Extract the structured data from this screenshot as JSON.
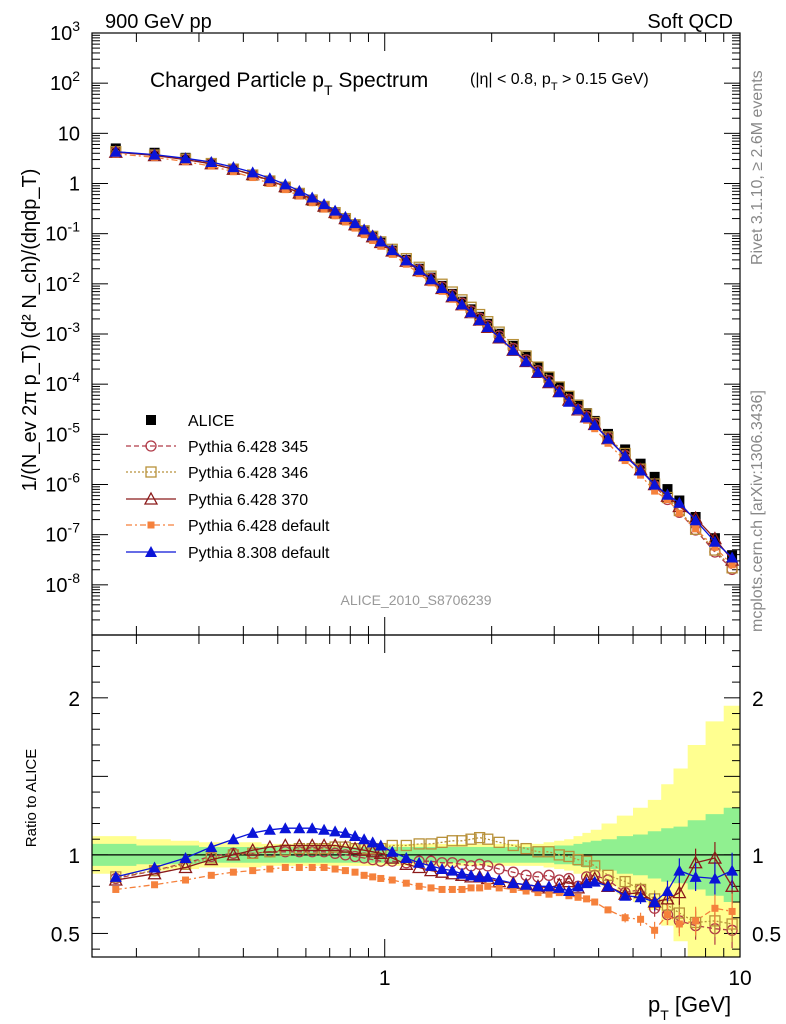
{
  "header": {
    "left": "900 GeV pp",
    "right": "Soft QCD"
  },
  "side": {
    "top": "Rivet 3.1.10, ≥ 2.6M events",
    "bottom": "mcplots.cern.ch [arXiv:1306.3436]"
  },
  "main": {
    "title_main": "Charged Particle p",
    "title_sub": "T",
    "title_tail": " Spectrum",
    "title_cut_a": "(|η| < 0.8, p",
    "title_cut_sub": "T",
    "title_cut_b": " > 0.15 GeV)",
    "ylabel": "1/(N_ev 2π p_T) (d² N_ch)/(dηdp_T)",
    "analysis": "ALICE_2010_S8706239"
  },
  "ratio": {
    "ylabel": "Ratio to ALICE"
  },
  "xaxis": {
    "label_a": "p",
    "label_sub": "T",
    "label_b": " [GeV]",
    "ticks": [
      "1",
      "10"
    ]
  },
  "colors": {
    "alice": "#000000",
    "p345": "#b03a48",
    "p346": "#b8913a",
    "p370": "#8b1a1a",
    "p6def": "#f5813c",
    "p8def": "#0a14d8",
    "band_inner": "#90f090",
    "band_outer": "#ffff90"
  },
  "chart_data": {
    "type": "line",
    "xscale": "log",
    "yscale_main": "log",
    "xlim": [
      0.15,
      10
    ],
    "ylim_main": [
      1e-09,
      1000
    ],
    "ylim_ratio": [
      0.35,
      2.4
    ],
    "legend_position": "bottom-left",
    "legend": [
      "ALICE",
      "Pythia 6.428 345",
      "Pythia 6.428 346",
      "Pythia 6.428 370",
      "Pythia 6.428 default",
      "Pythia 8.308 default"
    ],
    "main_yticks": [
      "10^3",
      "10^2",
      "10",
      "1",
      "10^-1",
      "10^-2",
      "10^-3",
      "10^-4",
      "10^-5",
      "10^-6",
      "10^-7",
      "10^-8"
    ],
    "ratio_yticks": [
      "0.5",
      "1",
      "2"
    ],
    "x": [
      0.175,
      0.225,
      0.275,
      0.325,
      0.375,
      0.425,
      0.475,
      0.525,
      0.575,
      0.625,
      0.675,
      0.725,
      0.775,
      0.825,
      0.875,
      0.925,
      0.975,
      1.05,
      1.15,
      1.25,
      1.35,
      1.45,
      1.55,
      1.65,
      1.75,
      1.85,
      1.95,
      2.1,
      2.3,
      2.5,
      2.7,
      2.9,
      3.1,
      3.3,
      3.5,
      3.7,
      3.9,
      4.25,
      4.75,
      5.25,
      5.75,
      6.25,
      6.75,
      7.5,
      8.5,
      9.5
    ],
    "alice": [
      5.0,
      4.1,
      3.25,
      2.55,
      1.93,
      1.46,
      1.1,
      0.82,
      0.61,
      0.45,
      0.335,
      0.25,
      0.19,
      0.145,
      0.11,
      0.085,
      0.066,
      0.046,
      0.03,
      0.02,
      0.0133,
      0.0091,
      0.0063,
      0.0044,
      0.0031,
      0.0022,
      0.0016,
      0.00101,
      0.00058,
      0.00035,
      0.000215,
      0.000136,
      8.8e-05,
      5.8e-05,
      3.9e-05,
      2.65e-05,
      1.85e-05,
      1.02e-05,
      5e-06,
      2.6e-06,
      1.42e-06,
      8.1e-07,
      4.8e-07,
      2.25e-07,
      8.5e-08,
      3.9e-08
    ],
    "ratio_series": {
      "Pythia 6.428 345": [
        0.85,
        0.9,
        0.95,
        0.99,
        1.01,
        1.01,
        1.02,
        1.02,
        1.02,
        1.02,
        1.02,
        1.01,
        1.0,
        0.99,
        0.98,
        0.97,
        0.96,
        0.96,
        0.95,
        0.96,
        0.96,
        0.95,
        0.95,
        0.94,
        0.93,
        0.94,
        0.93,
        0.91,
        0.89,
        0.87,
        0.86,
        0.87,
        0.84,
        0.85,
        0.8,
        0.86,
        0.87,
        0.84,
        0.76,
        0.78,
        0.66,
        0.62,
        0.58,
        0.55,
        0.53,
        0.52
      ],
      "Pythia 6.428 346": [
        0.86,
        0.9,
        0.94,
        0.98,
        1.0,
        1.01,
        1.02,
        1.03,
        1.04,
        1.04,
        1.04,
        1.05,
        1.05,
        1.04,
        1.04,
        1.04,
        1.04,
        1.06,
        1.06,
        1.07,
        1.07,
        1.08,
        1.09,
        1.09,
        1.1,
        1.11,
        1.1,
        1.08,
        1.06,
        1.04,
        1.02,
        1.02,
        1.0,
        0.99,
        0.97,
        0.96,
        0.93,
        0.87,
        0.83,
        0.78,
        0.72,
        0.68,
        0.63,
        0.57,
        0.58,
        0.56
      ],
      "Pythia 6.428 370": [
        0.84,
        0.88,
        0.92,
        0.97,
        1.0,
        1.03,
        1.05,
        1.06,
        1.06,
        1.06,
        1.06,
        1.06,
        1.05,
        1.04,
        1.03,
        1.02,
        1.01,
        0.98,
        0.94,
        0.92,
        0.9,
        0.89,
        0.88,
        0.87,
        0.86,
        0.86,
        0.85,
        0.83,
        0.82,
        0.81,
        0.8,
        0.79,
        0.81,
        0.83,
        0.79,
        0.84,
        0.85,
        0.8,
        0.75,
        0.76,
        0.7,
        0.72,
        0.76,
        0.95,
        0.98,
        0.8
      ],
      "Pythia 6.428 default": [
        0.78,
        0.81,
        0.84,
        0.87,
        0.89,
        0.9,
        0.91,
        0.92,
        0.92,
        0.92,
        0.92,
        0.91,
        0.9,
        0.89,
        0.87,
        0.86,
        0.85,
        0.84,
        0.82,
        0.8,
        0.79,
        0.78,
        0.78,
        0.78,
        0.79,
        0.79,
        0.8,
        0.79,
        0.78,
        0.77,
        0.76,
        0.75,
        0.76,
        0.74,
        0.73,
        0.72,
        0.7,
        0.65,
        0.6,
        0.59,
        0.52,
        0.62,
        0.56,
        0.58,
        0.66,
        0.64
      ],
      "Pythia 8.308 default": [
        0.86,
        0.92,
        0.98,
        1.05,
        1.1,
        1.14,
        1.16,
        1.17,
        1.17,
        1.17,
        1.16,
        1.15,
        1.14,
        1.12,
        1.1,
        1.08,
        1.06,
        1.02,
        0.98,
        0.95,
        0.93,
        0.91,
        0.9,
        0.88,
        0.87,
        0.86,
        0.86,
        0.84,
        0.82,
        0.81,
        0.8,
        0.8,
        0.79,
        0.77,
        0.8,
        0.82,
        0.83,
        0.8,
        0.74,
        0.73,
        0.7,
        0.77,
        0.9,
        0.86,
        0.85,
        0.9
      ]
    },
    "uncertainty_band": {
      "inner": [
        0.07,
        0.06,
        0.06,
        0.05,
        0.05,
        0.05,
        0.05,
        0.05,
        0.05,
        0.05,
        0.05,
        0.05,
        0.05,
        0.05,
        0.05,
        0.05,
        0.05,
        0.05,
        0.05,
        0.05,
        0.05,
        0.05,
        0.05,
        0.05,
        0.05,
        0.05,
        0.05,
        0.05,
        0.05,
        0.05,
        0.05,
        0.05,
        0.06,
        0.06,
        0.07,
        0.08,
        0.09,
        0.1,
        0.12,
        0.13,
        0.15,
        0.17,
        0.18,
        0.22,
        0.26,
        0.3
      ],
      "outer": [
        0.12,
        0.1,
        0.09,
        0.08,
        0.08,
        0.08,
        0.07,
        0.07,
        0.07,
        0.07,
        0.07,
        0.07,
        0.07,
        0.07,
        0.07,
        0.07,
        0.07,
        0.07,
        0.07,
        0.07,
        0.07,
        0.07,
        0.07,
        0.07,
        0.07,
        0.07,
        0.07,
        0.07,
        0.07,
        0.07,
        0.07,
        0.08,
        0.09,
        0.1,
        0.12,
        0.14,
        0.16,
        0.2,
        0.25,
        0.3,
        0.35,
        0.45,
        0.55,
        0.7,
        0.85,
        0.95
      ]
    }
  }
}
